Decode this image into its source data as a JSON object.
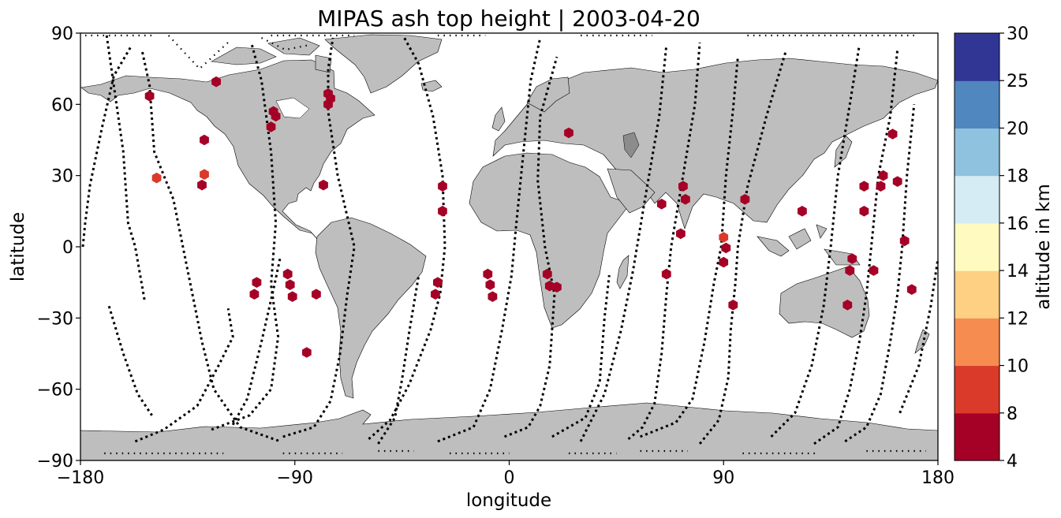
{
  "chart_data": {
    "type": "scatter",
    "title": "MIPAS ash top height | 2003-04-20",
    "xlabel": "longitude",
    "ylabel": "latitude",
    "xlim": [
      -180,
      180
    ],
    "ylim": [
      -90,
      90
    ],
    "x_ticks": [
      -180,
      -90,
      0,
      90,
      180
    ],
    "y_ticks": [
      -90,
      -60,
      -30,
      0,
      30,
      60,
      90
    ],
    "x_tick_labels": [
      "−180",
      "−90",
      "0",
      "90",
      "180"
    ],
    "y_tick_labels": [
      "−90",
      "−60",
      "−30",
      "0",
      "30",
      "60",
      "90"
    ],
    "grid": false,
    "basemap": "world land (grey) with coastlines",
    "land_color": "#bebebe",
    "track_color": "#000000",
    "colorbar": {
      "label": "altitude in km",
      "boundaries": [
        4,
        8,
        10,
        12,
        14,
        16,
        18,
        20,
        25,
        30
      ],
      "tick_labels": [
        "4",
        "8",
        "10",
        "12",
        "14",
        "16",
        "18",
        "20",
        "25",
        "30"
      ],
      "colors": [
        "#a50026",
        "#d73027",
        "#f46d43",
        "#fdae61",
        "#fee090",
        "#e0f3f8",
        "#abd9e9",
        "#74add1",
        "#4575b4",
        "#313695"
      ],
      "display_colors": [
        "#a50026",
        "#da3a2a",
        "#f68c50",
        "#fdd083",
        "#fffbc0",
        "#d5ecf4",
        "#8fc2de",
        "#5087bf",
        "#313695"
      ]
    },
    "ash_points": [
      {
        "lon": -151,
        "lat": 63.5,
        "alt": 6
      },
      {
        "lon": -148,
        "lat": 29,
        "alt": 9
      },
      {
        "lon": -123,
        "lat": 69.5,
        "alt": 6
      },
      {
        "lon": -128,
        "lat": 45,
        "alt": 6
      },
      {
        "lon": -128,
        "lat": 30.5,
        "alt": 9
      },
      {
        "lon": -129,
        "lat": 26,
        "alt": 6
      },
      {
        "lon": -99,
        "lat": 57,
        "alt": 6
      },
      {
        "lon": -98,
        "lat": 55,
        "alt": 6
      },
      {
        "lon": -100,
        "lat": 50.5,
        "alt": 6
      },
      {
        "lon": -76,
        "lat": 64.5,
        "alt": 6
      },
      {
        "lon": -75,
        "lat": 62.5,
        "alt": 6
      },
      {
        "lon": -76,
        "lat": 60,
        "alt": 6
      },
      {
        "lon": -78,
        "lat": 26,
        "alt": 6
      },
      {
        "lon": -106,
        "lat": -15,
        "alt": 6
      },
      {
        "lon": -107,
        "lat": -20,
        "alt": 6
      },
      {
        "lon": -93,
        "lat": -11.5,
        "alt": 6
      },
      {
        "lon": -92,
        "lat": -16,
        "alt": 6
      },
      {
        "lon": -91,
        "lat": -21,
        "alt": 6
      },
      {
        "lon": -81,
        "lat": -20,
        "alt": 6
      },
      {
        "lon": -85,
        "lat": -44.5,
        "alt": 6
      },
      {
        "lon": -28,
        "lat": 25.5,
        "alt": 6
      },
      {
        "lon": -28,
        "lat": 15,
        "alt": 6
      },
      {
        "lon": -30,
        "lat": -15,
        "alt": 6
      },
      {
        "lon": -31,
        "lat": -20,
        "alt": 6
      },
      {
        "lon": -9,
        "lat": -11.5,
        "alt": 6
      },
      {
        "lon": -8,
        "lat": -16,
        "alt": 6
      },
      {
        "lon": -7,
        "lat": -21,
        "alt": 6
      },
      {
        "lon": 25,
        "lat": 48,
        "alt": 6
      },
      {
        "lon": 16,
        "lat": -11.5,
        "alt": 6
      },
      {
        "lon": 17,
        "lat": -16.5,
        "alt": 6
      },
      {
        "lon": 20,
        "lat": -17,
        "alt": 6
      },
      {
        "lon": 64,
        "lat": 18,
        "alt": 6
      },
      {
        "lon": 66,
        "lat": -11.5,
        "alt": 6
      },
      {
        "lon": 72,
        "lat": 5.5,
        "alt": 6
      },
      {
        "lon": 73,
        "lat": 25.5,
        "alt": 6
      },
      {
        "lon": 74,
        "lat": 20,
        "alt": 6
      },
      {
        "lon": 90,
        "lat": 4,
        "alt": 9
      },
      {
        "lon": 91,
        "lat": -0.5,
        "alt": 6
      },
      {
        "lon": 90,
        "lat": -6.5,
        "alt": 6
      },
      {
        "lon": 94,
        "lat": -24.5,
        "alt": 6
      },
      {
        "lon": 99,
        "lat": 20,
        "alt": 6
      },
      {
        "lon": 123,
        "lat": 15,
        "alt": 6
      },
      {
        "lon": 144,
        "lat": -5,
        "alt": 6
      },
      {
        "lon": 143,
        "lat": -10,
        "alt": 6
      },
      {
        "lon": 142,
        "lat": -24.5,
        "alt": 6
      },
      {
        "lon": 149,
        "lat": 25.5,
        "alt": 6
      },
      {
        "lon": 149,
        "lat": 15,
        "alt": 6
      },
      {
        "lon": 153,
        "lat": -10,
        "alt": 6
      },
      {
        "lon": 156,
        "lat": 25.5,
        "alt": 6
      },
      {
        "lon": 157,
        "lat": 30,
        "alt": 6
      },
      {
        "lon": 161,
        "lat": 47.5,
        "alt": 6
      },
      {
        "lon": 163,
        "lat": 27.5,
        "alt": 6
      },
      {
        "lon": 166,
        "lat": 2.5,
        "alt": 6
      },
      {
        "lon": 169,
        "lat": -18,
        "alt": 6
      }
    ],
    "orbit_tracks": [
      [
        [
          -169,
          89
        ],
        [
          -162,
          40
        ],
        [
          -160,
          10
        ],
        [
          -157,
          0
        ],
        [
          -153,
          -23
        ]
      ],
      [
        [
          -154,
          82
        ],
        [
          -151,
          68
        ],
        [
          -149,
          40
        ],
        [
          -141,
          20
        ],
        [
          -135,
          -10
        ],
        [
          -129,
          -40
        ],
        [
          -124,
          -60
        ],
        [
          -113,
          -76
        ],
        [
          -96,
          -82
        ]
      ],
      [
        [
          -143,
          89
        ],
        [
          -130,
          75
        ],
        [
          -117,
          87
        ]
      ],
      [
        [
          -179,
          0
        ],
        [
          -178,
          10
        ],
        [
          -176,
          26
        ],
        [
          -171,
          50
        ],
        [
          -166,
          72
        ],
        [
          -159,
          84
        ]
      ],
      [
        [
          -168,
          -25
        ],
        [
          -162,
          -45
        ],
        [
          -156,
          -62
        ],
        [
          -150,
          -71
        ]
      ],
      [
        [
          -157,
          -82
        ],
        [
          -145,
          -77
        ],
        [
          -131,
          -67
        ],
        [
          -122,
          -50
        ],
        [
          -116,
          -38
        ],
        [
          -118,
          -26
        ]
      ],
      [
        [
          -125,
          -77
        ],
        [
          -109,
          -71
        ],
        [
          -100,
          -60
        ],
        [
          -97,
          -38
        ],
        [
          -100,
          -16
        ],
        [
          -98,
          10
        ],
        [
          -100,
          40
        ],
        [
          -104,
          70
        ],
        [
          -108,
          85
        ]
      ],
      [
        [
          -104,
          88
        ],
        [
          -94,
          83
        ],
        [
          -84,
          85
        ]
      ],
      [
        [
          -116,
          -75
        ],
        [
          -110,
          -64
        ],
        [
          -104,
          -40
        ],
        [
          -99,
          -18
        ],
        [
          -96,
          -4
        ]
      ],
      [
        [
          -95,
          -80
        ],
        [
          -82,
          -76
        ],
        [
          -75,
          -65
        ],
        [
          -71,
          -45
        ],
        [
          -68,
          -20
        ],
        [
          -65,
          0
        ],
        [
          -72,
          30
        ],
        [
          -76,
          57
        ],
        [
          -76,
          75
        ],
        [
          -74,
          88
        ]
      ],
      [
        [
          -59,
          -81
        ],
        [
          -50,
          -73
        ],
        [
          -42,
          -58
        ],
        [
          -33,
          -35
        ],
        [
          -29,
          -20
        ],
        [
          -27,
          0
        ],
        [
          -28,
          30
        ],
        [
          -32,
          55
        ],
        [
          -38,
          77
        ],
        [
          -44,
          88
        ]
      ],
      [
        [
          -55,
          -83
        ],
        [
          -48,
          -72
        ],
        [
          -45,
          -56
        ],
        [
          -42,
          -36
        ],
        [
          -38,
          -12
        ]
      ],
      [
        [
          -30,
          -82
        ],
        [
          -15,
          -76
        ],
        [
          -8,
          -60
        ],
        [
          -3,
          -35
        ],
        [
          1,
          -12
        ],
        [
          3,
          10
        ],
        [
          6,
          40
        ],
        [
          9,
          70
        ],
        [
          13,
          88
        ]
      ],
      [
        [
          -2,
          -80
        ],
        [
          8,
          -76
        ],
        [
          13,
          -67
        ],
        [
          17,
          -50
        ],
        [
          19,
          -20
        ],
        [
          15,
          0
        ],
        [
          12,
          28
        ],
        [
          13,
          55
        ],
        [
          20,
          80
        ]
      ],
      [
        [
          18,
          -80
        ],
        [
          32,
          -72
        ],
        [
          38,
          -57
        ],
        [
          40,
          -30
        ],
        [
          42,
          -12
        ]
      ],
      [
        [
          30,
          -82
        ],
        [
          40,
          -62
        ],
        [
          47,
          -35
        ],
        [
          52,
          -10
        ],
        [
          57,
          20
        ],
        [
          63,
          55
        ],
        [
          66,
          85
        ]
      ],
      [
        [
          50,
          -81
        ],
        [
          56,
          -76
        ],
        [
          61,
          -66
        ],
        [
          64,
          -45
        ],
        [
          66,
          -20
        ],
        [
          68,
          0
        ],
        [
          73,
          30
        ],
        [
          78,
          60
        ],
        [
          80,
          86
        ]
      ],
      [
        [
          55,
          -80
        ],
        [
          70,
          -74
        ],
        [
          77,
          -64
        ],
        [
          82,
          -40
        ],
        [
          86,
          -15
        ],
        [
          89,
          0
        ],
        [
          91,
          30
        ],
        [
          94,
          58
        ],
        [
          96,
          80
        ]
      ],
      [
        [
          80,
          -83
        ],
        [
          88,
          -73
        ],
        [
          92,
          -55
        ],
        [
          93,
          -35
        ],
        [
          95,
          -15
        ],
        [
          96,
          0
        ],
        [
          100,
          25
        ],
        [
          108,
          55
        ],
        [
          116,
          82
        ]
      ],
      [
        [
          110,
          -80
        ],
        [
          120,
          -70
        ],
        [
          127,
          -50
        ],
        [
          132,
          -25
        ],
        [
          135,
          0
        ],
        [
          138,
          30
        ],
        [
          143,
          60
        ],
        [
          147,
          85
        ]
      ],
      [
        [
          128,
          -83
        ],
        [
          138,
          -76
        ],
        [
          143,
          -60
        ],
        [
          147,
          -40
        ],
        [
          150,
          -20
        ],
        [
          152,
          0
        ],
        [
          155,
          30
        ],
        [
          160,
          55
        ],
        [
          163,
          83
        ]
      ],
      [
        [
          141,
          -82
        ],
        [
          150,
          -76
        ],
        [
          156,
          -62
        ],
        [
          160,
          -40
        ],
        [
          163,
          -20
        ],
        [
          165,
          0
        ],
        [
          167,
          30
        ],
        [
          170,
          60
        ]
      ],
      [
        [
          164,
          -70
        ],
        [
          172,
          -50
        ],
        [
          177,
          -25
        ],
        [
          180,
          -5
        ]
      ],
      [
        [
          -170,
          -87
        ],
        [
          -120,
          -87
        ]
      ],
      [
        [
          -95,
          -87
        ],
        [
          -70,
          -87
        ]
      ],
      [
        [
          -55,
          -86
        ],
        [
          -40,
          -86
        ]
      ],
      [
        [
          -25,
          -87
        ],
        [
          0,
          -87
        ]
      ],
      [
        [
          25,
          -87
        ],
        [
          45,
          -87
        ]
      ],
      [
        [
          55,
          -86
        ],
        [
          75,
          -86
        ]
      ],
      [
        [
          98,
          -87
        ],
        [
          130,
          -87
        ]
      ],
      [
        [
          150,
          -86
        ],
        [
          175,
          -86
        ]
      ],
      [
        [
          -178,
          89
        ],
        [
          -150,
          89
        ]
      ],
      [
        [
          -100,
          89
        ],
        [
          -65,
          89
        ]
      ],
      [
        [
          -30,
          89
        ],
        [
          -10,
          89
        ]
      ],
      [
        [
          30,
          89
        ],
        [
          60,
          89
        ]
      ],
      [
        [
          100,
          89
        ],
        [
          170,
          89
        ]
      ]
    ]
  }
}
